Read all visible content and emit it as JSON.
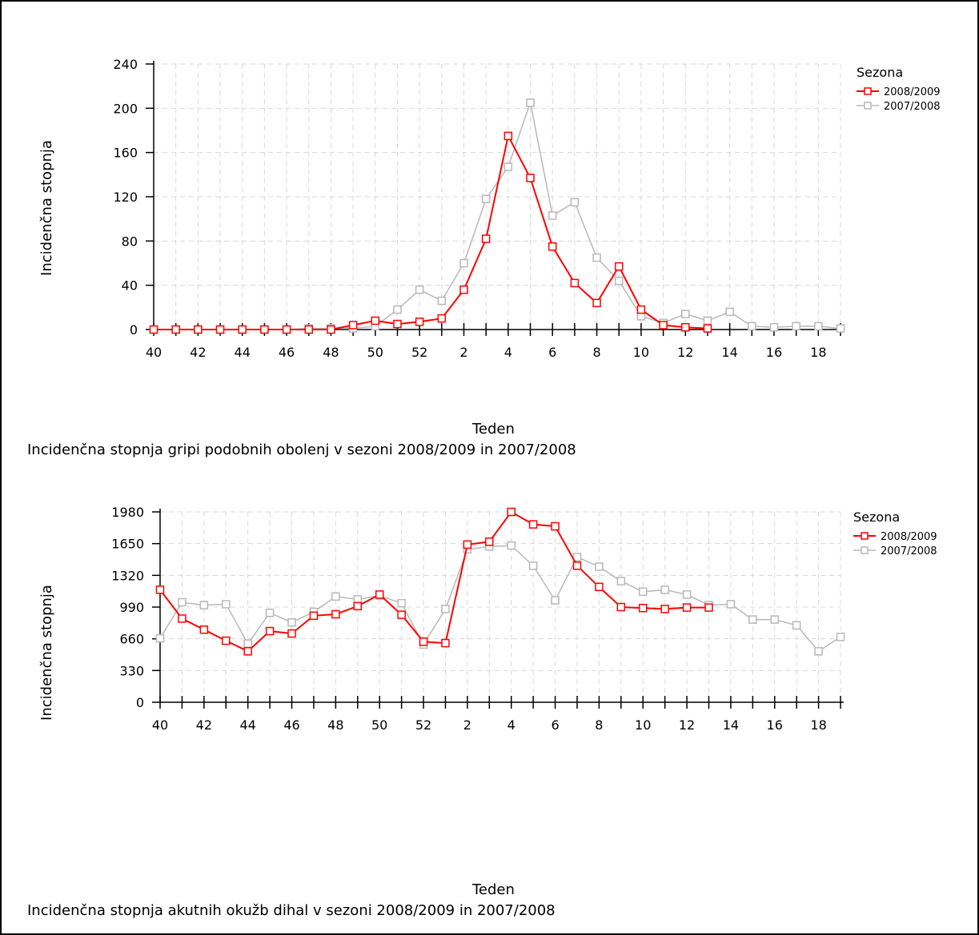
{
  "chart_data": [
    {
      "type": "line",
      "title": "Incidenčna stopnja gripi podobnih obolenj v sezoni 2008/2009 in 2007/2008",
      "xlabel": "Teden",
      "ylabel": "Incidenčna stopnja",
      "legend_title": "Sezona",
      "legend_position": "right",
      "grid": true,
      "ylim": [
        0,
        240
      ],
      "yticks": [
        "0",
        "40",
        "80",
        "120",
        "160",
        "200",
        "240"
      ],
      "ytick_values": [
        0,
        40,
        80,
        120,
        160,
        200,
        240
      ],
      "categories": [
        "40",
        "41",
        "42",
        "43",
        "44",
        "45",
        "46",
        "47",
        "48",
        "49",
        "50",
        "51",
        "52",
        "1",
        "2",
        "3",
        "4",
        "5",
        "6",
        "7",
        "8",
        "9",
        "10",
        "11",
        "12",
        "13",
        "14",
        "15",
        "16",
        "17",
        "18",
        "19"
      ],
      "xtick_labels": [
        "40",
        "",
        "42",
        "",
        "44",
        "",
        "46",
        "",
        "48",
        "",
        "50",
        "",
        "52",
        "",
        "2",
        "",
        "4",
        "",
        "6",
        "",
        "8",
        "",
        "10",
        "",
        "12",
        "",
        "14",
        "",
        "16",
        "",
        "18",
        ""
      ],
      "series": [
        {
          "name": "2008/2009",
          "color": "#ff0000",
          "values": [
            0,
            0,
            0,
            0,
            0,
            0,
            0,
            0,
            0,
            4,
            8,
            5,
            7,
            10,
            36,
            82,
            175,
            137,
            75,
            42,
            24,
            57,
            18,
            4,
            2,
            1,
            null,
            null,
            null,
            null,
            null,
            null
          ]
        },
        {
          "name": "2007/2008",
          "color": "#b8b8b8",
          "values": [
            0,
            0,
            0,
            0,
            0,
            0,
            0,
            1,
            1,
            1,
            3,
            18,
            36,
            26,
            60,
            118,
            147,
            205,
            103,
            115,
            65,
            44,
            12,
            6,
            14,
            8,
            16,
            3,
            2,
            3,
            3,
            1
          ]
        }
      ]
    },
    {
      "type": "line",
      "title": "Incidenčna stopnja akutnih okužb dihal v sezoni 2008/2009 in 2007/2008",
      "xlabel": "Teden",
      "ylabel": "Incidenčna stopnja",
      "legend_title": "Sezona",
      "legend_position": "right",
      "grid": true,
      "ylim": [
        0,
        1980
      ],
      "yticks": [
        "0",
        "330",
        "660",
        "990",
        "1320",
        "1650",
        "1980"
      ],
      "ytick_values": [
        0,
        330,
        660,
        990,
        1320,
        1650,
        1980
      ],
      "categories": [
        "40",
        "41",
        "42",
        "43",
        "44",
        "45",
        "46",
        "47",
        "48",
        "49",
        "50",
        "51",
        "52",
        "1",
        "2",
        "3",
        "4",
        "5",
        "6",
        "7",
        "8",
        "9",
        "10",
        "11",
        "12",
        "13",
        "14",
        "15",
        "16",
        "17",
        "18",
        "19"
      ],
      "xtick_labels": [
        "40",
        "",
        "42",
        "",
        "44",
        "",
        "46",
        "",
        "48",
        "",
        "50",
        "",
        "52",
        "",
        "2",
        "",
        "4",
        "",
        "6",
        "",
        "8",
        "",
        "10",
        "",
        "12",
        "",
        "14",
        "",
        "16",
        "",
        "18",
        ""
      ],
      "series": [
        {
          "name": "2008/2009",
          "color": "#ff0000",
          "values": [
            1170,
            870,
            755,
            640,
            530,
            740,
            715,
            900,
            915,
            1000,
            1120,
            910,
            630,
            615,
            1640,
            1670,
            1980,
            1850,
            1830,
            1420,
            1200,
            990,
            980,
            970,
            985,
            985,
            null,
            null,
            null,
            null,
            null,
            null
          ]
        },
        {
          "name": "2007/2008",
          "color": "#b8b8b8",
          "values": [
            665,
            1040,
            1010,
            1020,
            610,
            930,
            830,
            940,
            1100,
            1070,
            1110,
            1030,
            600,
            970,
            1590,
            1620,
            1630,
            1420,
            1060,
            1510,
            1410,
            1260,
            1150,
            1170,
            1120,
            1010,
            1020,
            860,
            860,
            800,
            530,
            680
          ]
        }
      ]
    }
  ]
}
